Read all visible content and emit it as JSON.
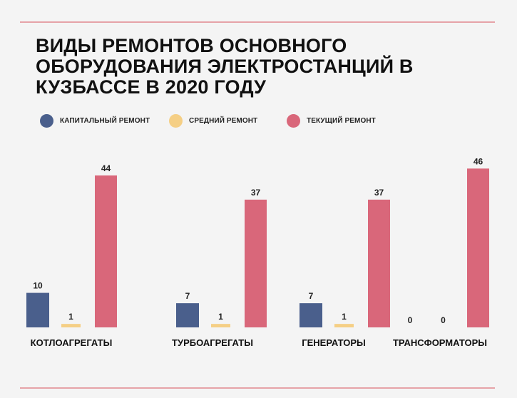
{
  "title_lines": [
    "ВИДЫ РЕМОНТОВ ОСНОВНОГО",
    "ОБОРУДОВАНИЯ ЭЛЕКТРОСТАНЦИЙ В",
    "КУЗБАССЕ В 2020 ГОДУ"
  ],
  "legend": [
    {
      "label": "КАПИТАЛЬНЫЙ РЕМОНТ",
      "color": "#4a5f8c"
    },
    {
      "label": "СРЕДНИЙ РЕМОНТ",
      "color": "#f5cf85"
    },
    {
      "label": "ТЕКУЩИЙ РЕМОНТ",
      "color": "#d9677a"
    }
  ],
  "chart_data": {
    "type": "bar",
    "title": "ВИДЫ РЕМОНТОВ ОСНОВНОГО ОБОРУДОВАНИЯ ЭЛЕКТРОСТАНЦИЙ В КУЗБАССЕ В 2020 ГОДУ",
    "categories": [
      "КОТЛОАГРЕГАТЫ",
      "ТУРБОАГРЕГАТЫ",
      "ГЕНЕРАТОРЫ",
      "ТРАНСФОРМАТОРЫ"
    ],
    "series": [
      {
        "name": "КАПИТАЛЬНЫЙ РЕМОНТ",
        "color": "#4a5f8c",
        "values": [
          10,
          7,
          7,
          0
        ]
      },
      {
        "name": "СРЕДНИЙ РЕМОНТ",
        "color": "#f5cf85",
        "values": [
          1,
          1,
          1,
          0
        ]
      },
      {
        "name": "ТЕКУЩИЙ РЕМОНТ",
        "color": "#d9677a",
        "values": [
          44,
          37,
          37,
          46
        ]
      }
    ],
    "data_labels": [
      [
        "10",
        "1",
        "44"
      ],
      [
        "7",
        "1",
        "37"
      ],
      [
        "7",
        "1",
        "37"
      ],
      [
        "0",
        "0",
        "46"
      ]
    ],
    "xlabel": "",
    "ylabel": "",
    "ylim": [
      0,
      50
    ],
    "grid": false,
    "legend_position": "top-left"
  }
}
